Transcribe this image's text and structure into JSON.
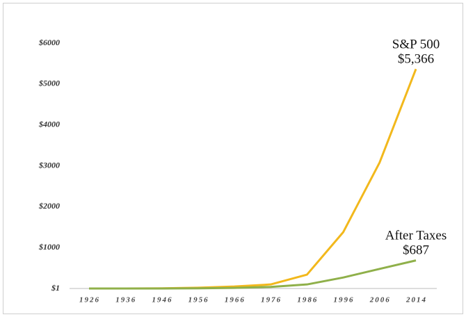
{
  "chart_data": {
    "type": "line",
    "categories": [
      "1926",
      "1936",
      "1946",
      "1956",
      "1966",
      "1976",
      "1986",
      "1996",
      "2006",
      "2014"
    ],
    "series": [
      {
        "name": "S&P 500",
        "color": "#f2b81c",
        "values": [
          1,
          2,
          5,
          20,
          50,
          100,
          340,
          1380,
          3080,
          5366
        ],
        "value_labels": [
          null,
          null,
          null,
          null,
          null,
          null,
          null,
          null,
          null,
          "$5,366"
        ]
      },
      {
        "name": "After Taxes",
        "color": "#8fb04a",
        "values": [
          1,
          1,
          2,
          5,
          15,
          40,
          100,
          270,
          480,
          687
        ],
        "value_labels": [
          null,
          null,
          null,
          null,
          null,
          null,
          null,
          null,
          null,
          "$687"
        ]
      }
    ],
    "ylim": [
      1,
      6000
    ],
    "yticks": [
      {
        "value": 1,
        "label": "$1"
      },
      {
        "value": 1000,
        "label": "$1000"
      },
      {
        "value": 2000,
        "label": "$2000"
      },
      {
        "value": 3000,
        "label": "$3000"
      },
      {
        "value": 4000,
        "label": "$4000"
      },
      {
        "value": 5000,
        "label": "$5000"
      },
      {
        "value": 6000,
        "label": "$6000"
      }
    ],
    "grid": false
  }
}
